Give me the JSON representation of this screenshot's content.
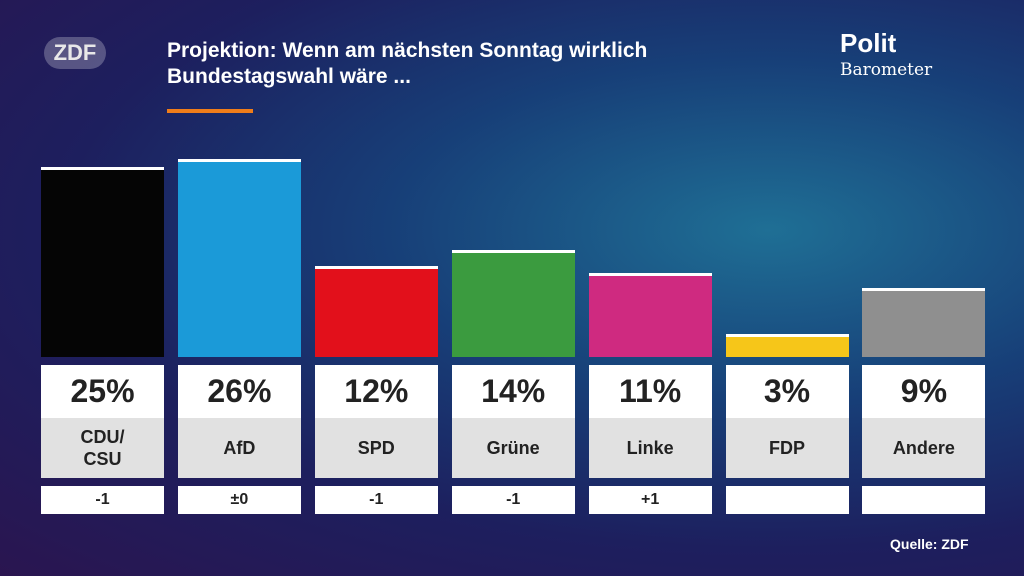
{
  "chart_data": {
    "type": "bar",
    "title": "Projektion: Wenn am nächsten Sonntag wirklich Bundestagswahl wäre ...",
    "categories": [
      "CDU/\nCSU",
      "AfD",
      "SPD",
      "Grüne",
      "Linke",
      "FDP",
      "Andere"
    ],
    "values": [
      25,
      26,
      12,
      14,
      11,
      3,
      9
    ],
    "value_labels": [
      "25%",
      "26%",
      "12%",
      "14%",
      "11%",
      "3%",
      "9%"
    ],
    "colors": [
      "#050505",
      "#1b9ad8",
      "#e2101b",
      "#3b9b3f",
      "#cf2a80",
      "#f6c619",
      "#8f8f8f"
    ],
    "changes": [
      "-1",
      "±0",
      "-1",
      "-1",
      "+1",
      null,
      null
    ],
    "source": "Quelle: ZDF"
  },
  "branding": {
    "channel": "ZDF",
    "show_line1": "Polit",
    "show_line2": "Barometer"
  }
}
